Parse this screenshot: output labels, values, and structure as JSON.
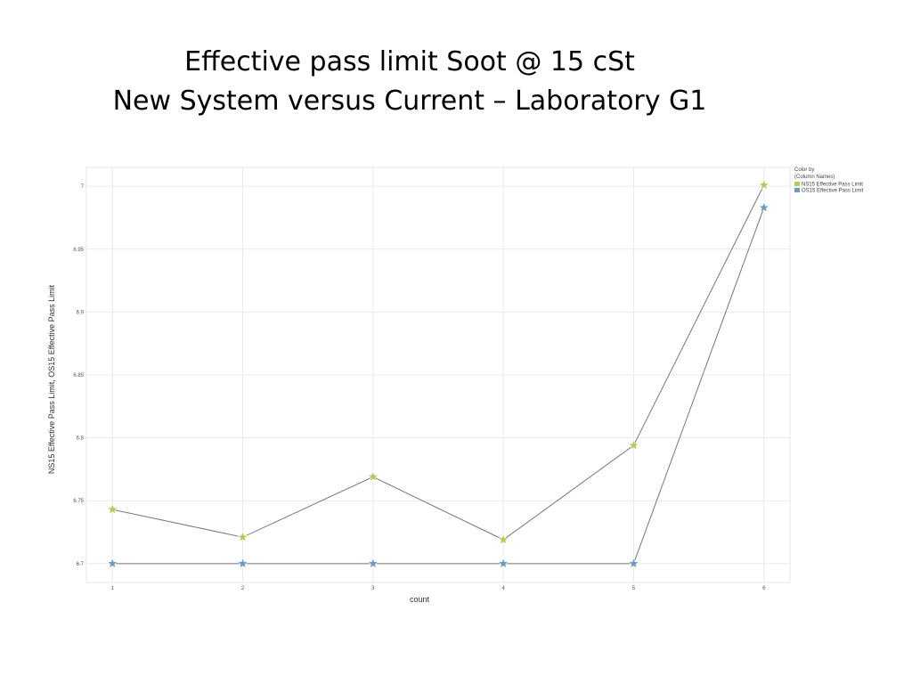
{
  "slide": {
    "title_line1": "Effective pass limit Soot @ 15 cSt",
    "title_line2": "New System versus Current – Laboratory G1"
  },
  "chart_data": {
    "type": "line",
    "x": [
      1,
      2,
      3,
      4,
      5,
      6
    ],
    "series": [
      {
        "name": "NS15 Effective Pass Limit",
        "values": [
          6.743,
          6.721,
          6.769,
          6.719,
          6.794,
          7.001
        ],
        "color": "#b0cc5a",
        "marker": "star"
      },
      {
        "name": "OS15 Effective Pass Limit",
        "values": [
          6.7,
          6.7,
          6.7,
          6.7,
          6.7,
          6.983
        ],
        "color": "#6f98c4",
        "marker": "star"
      }
    ],
    "line_color": "#777777",
    "xlabel": "count",
    "ylabel": "NS15 Effective Pass Limit, OS15 Effective Pass Limit",
    "xlim": [
      0.8,
      6.2
    ],
    "ylim": [
      6.685,
      7.015
    ],
    "xticks": [
      "1",
      "2",
      "3",
      "4",
      "5",
      "6"
    ],
    "yticks": [
      "6.7",
      "6.75",
      "6.8",
      "6.85",
      "6.9",
      "6.95",
      "7"
    ],
    "grid": true,
    "legend": {
      "placement": "top-right",
      "title_line1": "Color by",
      "title_line2": "(Column Names)"
    }
  }
}
